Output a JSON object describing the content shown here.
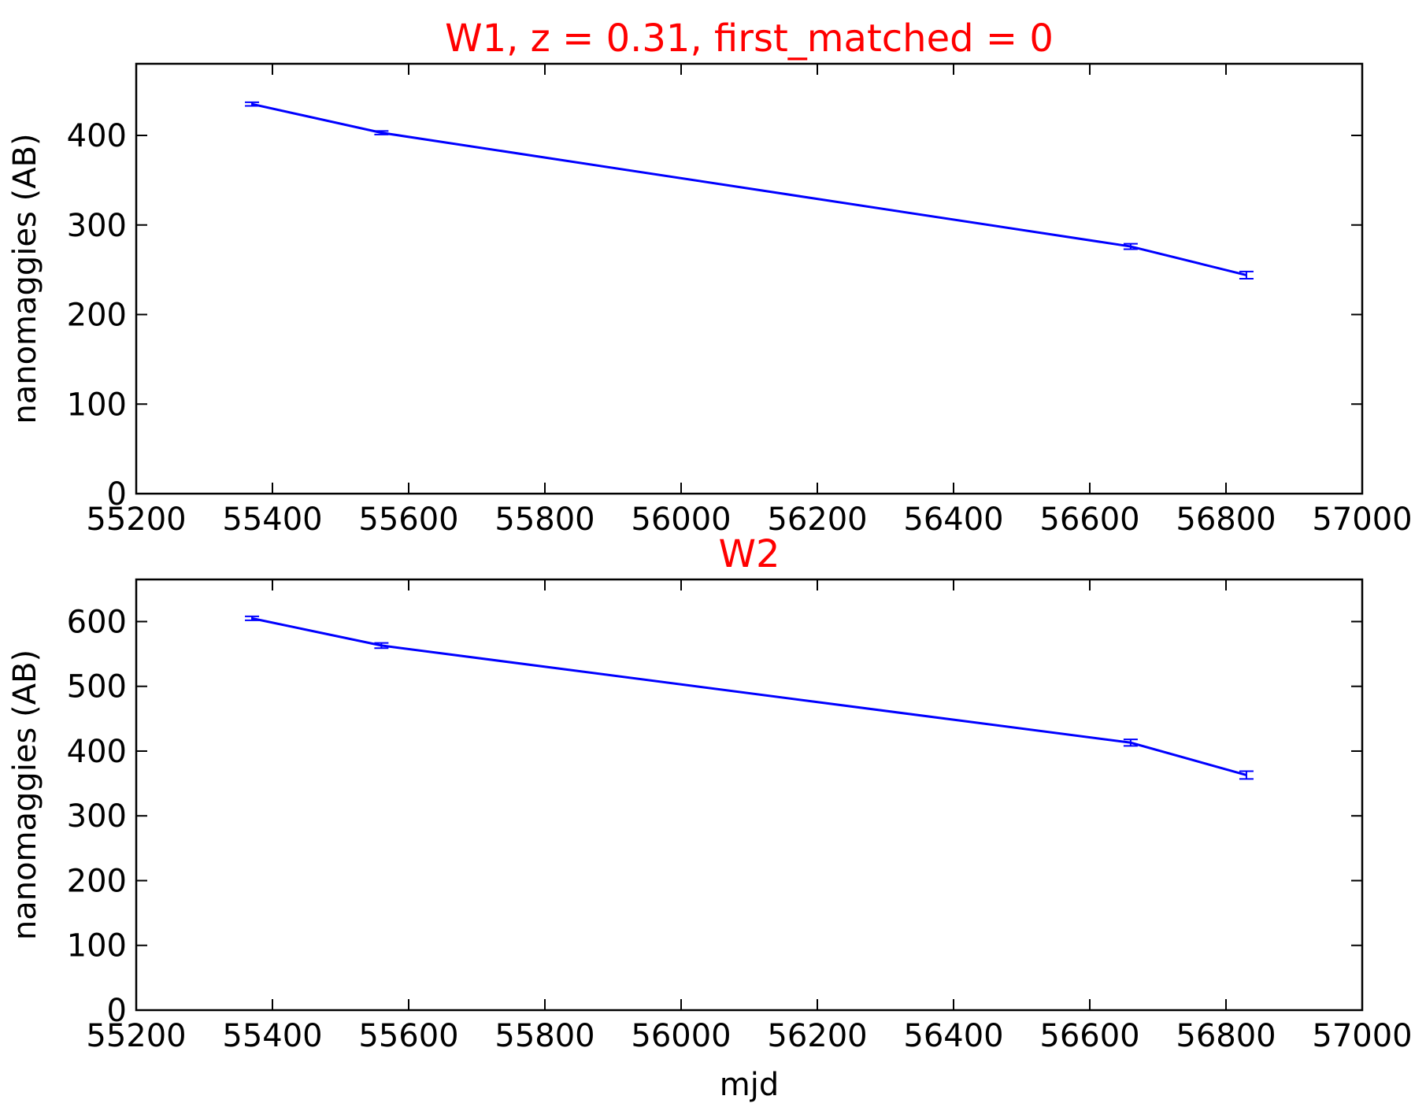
{
  "chart_data": [
    {
      "type": "line",
      "title": "W1, z = 0.31, first_matched = 0",
      "xlabel": "",
      "ylabel": "nanomaggies (AB)",
      "xlim": [
        55200,
        57000
      ],
      "ylim": [
        0,
        480
      ],
      "xticks": [
        55200,
        55400,
        55600,
        55800,
        56000,
        56200,
        56400,
        56600,
        56800,
        57000
      ],
      "yticks": [
        0,
        100,
        200,
        300,
        400
      ],
      "x": [
        55370,
        55560,
        56660,
        56830
      ],
      "y": [
        435,
        403,
        276,
        244
      ],
      "yerr": [
        2,
        2,
        3,
        4
      ],
      "grid": false,
      "color": "#0000ff",
      "title_color": "#ff0000"
    },
    {
      "type": "line",
      "title": "W2",
      "xlabel": "mjd",
      "ylabel": "nanomaggies (AB)",
      "xlim": [
        55200,
        57000
      ],
      "ylim": [
        0,
        665
      ],
      "xticks": [
        55200,
        55400,
        55600,
        55800,
        56000,
        56200,
        56400,
        56600,
        56800,
        57000
      ],
      "yticks": [
        0,
        100,
        200,
        300,
        400,
        500,
        600
      ],
      "x": [
        55370,
        55560,
        56660,
        56830
      ],
      "y": [
        605,
        563,
        413,
        363
      ],
      "yerr": [
        3,
        4,
        5,
        6
      ],
      "grid": false,
      "color": "#0000ff",
      "title_color": "#ff0000"
    }
  ]
}
